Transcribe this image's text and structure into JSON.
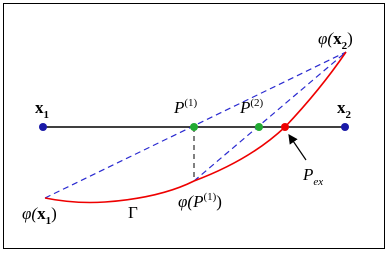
{
  "labels": [
    {
      "base": "x",
      "sub": "1"
    },
    {
      "base": "x",
      "sub": "2"
    },
    {
      "prefix": "φ(",
      "base": "x",
      "sub": "2",
      "suffix": ")"
    },
    {
      "prefix": "φ(",
      "base": "x",
      "sub": "1",
      "suffix": ")"
    },
    {
      "base": "P",
      "sup": "(1)"
    },
    {
      "base": "P",
      "sup": "(2)"
    },
    {
      "prefix": "φ(",
      "base": "P",
      "sup": "(1)",
      "suffix": ")"
    },
    {
      "base": "Γ"
    },
    {
      "base": "P",
      "sub": "ex"
    }
  ]
}
